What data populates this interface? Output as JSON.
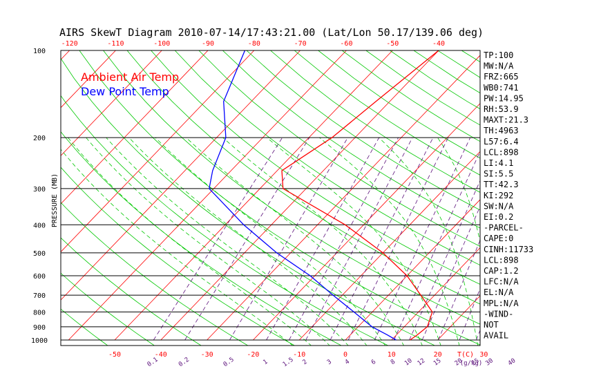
{
  "chart_data": {
    "type": "skewt",
    "title": "AIRS SkewT Diagram 2010-07-14/17:43:21.00 (Lat/Lon 50.17/139.06 deg)",
    "ylabel": "PRESSURE (MB)",
    "pressure_ticks": [
      "100",
      "200",
      "300",
      "400",
      "500",
      "600",
      "700",
      "800",
      "900",
      "1000"
    ],
    "pressure_values": [
      100,
      200,
      300,
      400,
      500,
      600,
      700,
      800,
      900,
      1000
    ],
    "top_temp_ticks": [
      -120,
      -110,
      -100,
      -90,
      -80,
      -70,
      -60,
      -50,
      -40
    ],
    "bottom_temp_ticks": [
      -50,
      -40,
      -30,
      -20,
      -10,
      0,
      10,
      20,
      30
    ],
    "bottom_temp_unit": "T(C)",
    "mixing_ratio_labels": [
      "0.1",
      "0.2",
      "0.5",
      "1",
      "1.5",
      "2",
      "3",
      "4",
      "6",
      "8",
      "10",
      "12",
      "15",
      "20",
      "25",
      "30",
      "40"
    ],
    "mixing_ratio_unit": "(g/kg)",
    "legend": [
      {
        "label": "Ambient Air Temp",
        "color": "#ff0000"
      },
      {
        "label": "Dew Point Temp",
        "color": "#0000ff"
      }
    ],
    "series": [
      {
        "name": "Ambient Air Temp",
        "color": "#ff0000",
        "points": [
          {
            "p": 1000,
            "t": 14
          },
          {
            "p": 960,
            "t": 14.5
          },
          {
            "p": 900,
            "t": 15
          },
          {
            "p": 800,
            "t": 13
          },
          {
            "p": 700,
            "t": 7
          },
          {
            "p": 600,
            "t": 0
          },
          {
            "p": 500,
            "t": -10
          },
          {
            "p": 400,
            "t": -24
          },
          {
            "p": 300,
            "t": -45
          },
          {
            "p": 260,
            "t": -49
          },
          {
            "p": 200,
            "t": -45
          },
          {
            "p": 150,
            "t": -43
          },
          {
            "p": 100,
            "t": -40
          }
        ]
      },
      {
        "name": "Dew Point Temp",
        "color": "#0000ff",
        "points": [
          {
            "p": 1000,
            "t": 11
          },
          {
            "p": 960,
            "t": 8
          },
          {
            "p": 900,
            "t": 3
          },
          {
            "p": 800,
            "t": -4
          },
          {
            "p": 700,
            "t": -12
          },
          {
            "p": 600,
            "t": -21
          },
          {
            "p": 500,
            "t": -33
          },
          {
            "p": 400,
            "t": -46
          },
          {
            "p": 300,
            "t": -61
          },
          {
            "p": 260,
            "t": -64
          },
          {
            "p": 200,
            "t": -68
          },
          {
            "p": 150,
            "t": -76
          },
          {
            "p": 100,
            "t": -82
          }
        ]
      }
    ]
  },
  "indices": [
    "TP:100",
    "MW:N/A",
    "FRZ:665",
    "WB0:741",
    "PW:14.95",
    "RH:53.9",
    "MAXT:21.3",
    "TH:4963",
    "L57:6.4",
    "LCL:898",
    "LI:4.1",
    "SI:5.5",
    "TT:42.3",
    "KI:292",
    "SW:N/A",
    "EI:0.2",
    "-PARCEL-",
    "CAPE:0",
    "CINH:11733",
    "LCL:898",
    "CAP:1.2",
    "LFC:N/A",
    "EL:N/A",
    "MPL:N/A",
    "-WIND-",
    "NOT",
    "AVAIL"
  ],
  "colors": {
    "isotherm": "#ff0000",
    "dry_adiabat": "#00c800",
    "moist_adiabat": "#00c800",
    "mixing_ratio": "#5a0f7a",
    "isobar": "#000000"
  }
}
